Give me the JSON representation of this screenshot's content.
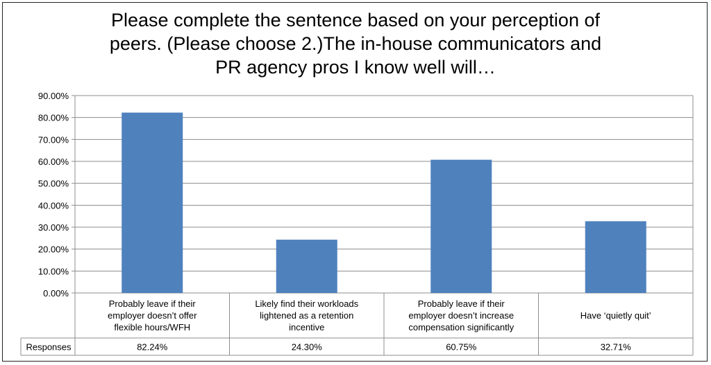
{
  "chart_data": {
    "type": "bar",
    "title_lines": [
      "Please complete the sentence based on your perception of",
      "peers. (Please choose 2.)The in-house communicators and",
      "PR agency pros I know well will…"
    ],
    "categories": [
      [
        "Probably leave if their",
        "employer doesn’t offer",
        "flexible hours/WFH"
      ],
      [
        "Likely find their workloads",
        "lightened as a retention",
        "incentive"
      ],
      [
        "Probably leave if their",
        "employer doesn’t increase",
        "compensation significantly"
      ],
      [
        "Have ‘quietly quit’"
      ]
    ],
    "series": [
      {
        "name": "Responses",
        "values": [
          82.24,
          24.3,
          60.75,
          32.71
        ]
      }
    ],
    "table_values": [
      "82.24%",
      "24.30%",
      "60.75%",
      "32.71%"
    ],
    "ylim": [
      0,
      90
    ],
    "yticks": [
      "0.00%",
      "10.00%",
      "20.00%",
      "30.00%",
      "40.00%",
      "50.00%",
      "60.00%",
      "70.00%",
      "80.00%",
      "90.00%"
    ],
    "grid": true,
    "bar_color": "#4f81bd",
    "data_table": true
  }
}
